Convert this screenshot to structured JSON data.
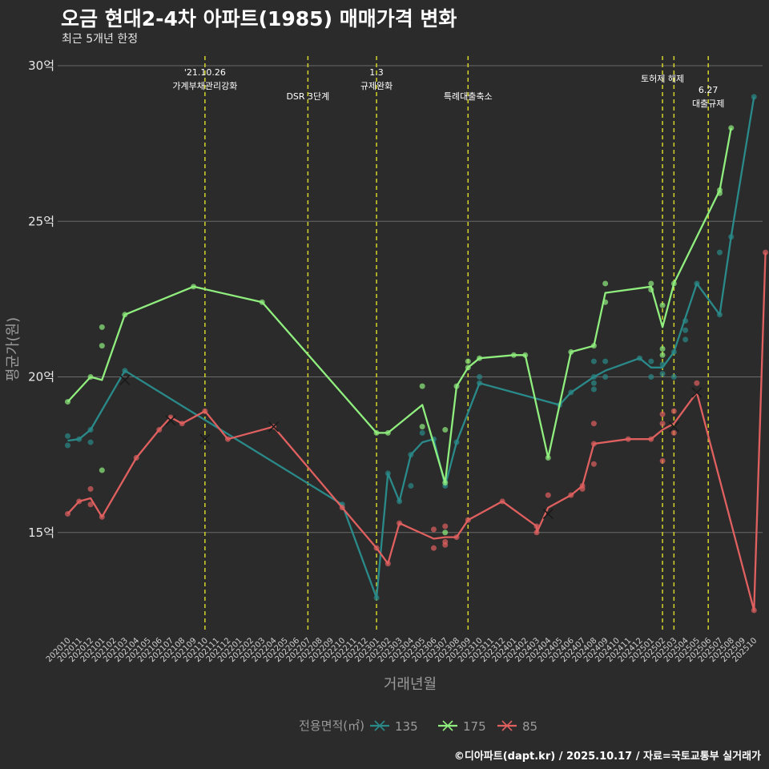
{
  "title": "오금 현대2-4차 아파트(1985) 매매가격 변화",
  "subtitle": "최근 5개년 한정",
  "caption": "©디아파트(dapt.kr) / 2025.10.17 / 자료=국토교통부 실거래가",
  "chart_data": {
    "type": "line",
    "xlabel": "거래년월",
    "ylabel": "평균가(원)",
    "y_ticks": [
      15,
      20,
      25,
      30
    ],
    "y_tick_labels": [
      "15억",
      "20억",
      "25억",
      "30억"
    ],
    "ylim": [
      11.8,
      30.9
    ],
    "grid": true,
    "categories": [
      "202010",
      "202011",
      "202012",
      "202101",
      "202102",
      "202103",
      "202104",
      "202105",
      "202106",
      "202107",
      "202108",
      "202109",
      "202110",
      "202111",
      "202112",
      "202201",
      "202202",
      "202203",
      "202204",
      "202205",
      "202206",
      "202207",
      "202208",
      "202209",
      "202210",
      "202211",
      "202212",
      "202301",
      "202302",
      "202303",
      "202304",
      "202305",
      "202306",
      "202307",
      "202308",
      "202309",
      "202310",
      "202311",
      "202312",
      "202401",
      "202402",
      "202403",
      "202404",
      "202405",
      "202406",
      "202407",
      "202408",
      "202409",
      "202410",
      "202411",
      "202412",
      "202501",
      "202502",
      "202503",
      "202504",
      "202505",
      "202506",
      "202507",
      "202508",
      "202509",
      "202510"
    ],
    "legend_title": "전용면적(㎡)",
    "legend_position": "bottom",
    "series": [
      {
        "name": "135",
        "color": "#2a8a8a",
        "line": [
          [
            0,
            17.95
          ],
          [
            1,
            18
          ],
          [
            2,
            18.3
          ],
          [
            5,
            20.2
          ],
          [
            24,
            15.9
          ],
          [
            27,
            12.9
          ],
          [
            28,
            16.9
          ],
          [
            29,
            16.0
          ],
          [
            30,
            17.5
          ],
          [
            31,
            17.9
          ],
          [
            32,
            18.0
          ],
          [
            33,
            16.5
          ],
          [
            34,
            17.9
          ],
          [
            36,
            19.8
          ],
          [
            43,
            19.1
          ],
          [
            44,
            19.5
          ],
          [
            46,
            20.0
          ],
          [
            47,
            20.2
          ],
          [
            50,
            20.6
          ],
          [
            51,
            20.3
          ],
          [
            52,
            20.3
          ],
          [
            53,
            20.8
          ],
          [
            55,
            23.0
          ],
          [
            57,
            22.0
          ],
          [
            58,
            24.5
          ],
          [
            60,
            29.0
          ]
        ],
        "points": [
          [
            0,
            17.8
          ],
          [
            0,
            18.1
          ],
          [
            1,
            18.0
          ],
          [
            2,
            17.9
          ],
          [
            2,
            18.3
          ],
          [
            5,
            20.2
          ],
          [
            24,
            15.9
          ],
          [
            27,
            12.9
          ],
          [
            28,
            16.9
          ],
          [
            29,
            16.0
          ],
          [
            30,
            17.5
          ],
          [
            30,
            16.5
          ],
          [
            31,
            18.2
          ],
          [
            32,
            18.0
          ],
          [
            33,
            16.5
          ],
          [
            34,
            17.9
          ],
          [
            36,
            20.0
          ],
          [
            36,
            19.8
          ],
          [
            43,
            19.1
          ],
          [
            44,
            19.5
          ],
          [
            46,
            20.5
          ],
          [
            46,
            19.6
          ],
          [
            46,
            19.8
          ],
          [
            46,
            20.0
          ],
          [
            47,
            20.0
          ],
          [
            47,
            20.5
          ],
          [
            50,
            20.6
          ],
          [
            51,
            20.0
          ],
          [
            51,
            20.5
          ],
          [
            52,
            20.1
          ],
          [
            52,
            20.4
          ],
          [
            53,
            20.0
          ],
          [
            53,
            20.8
          ],
          [
            54,
            21.2
          ],
          [
            54,
            21.5
          ],
          [
            54,
            21.8
          ],
          [
            55,
            23.0
          ],
          [
            57,
            24.0
          ],
          [
            57,
            22.0
          ],
          [
            58,
            24.5
          ],
          [
            60,
            29.0
          ]
        ],
        "cancelled": [
          [
            5,
            19.9
          ]
        ]
      },
      {
        "name": "175",
        "color": "#90ee7e",
        "line": [
          [
            0,
            19.2
          ],
          [
            2,
            20.0
          ],
          [
            3,
            19.9
          ],
          [
            5,
            22.0
          ],
          [
            11,
            22.9
          ],
          [
            17,
            22.4
          ],
          [
            27,
            18.2
          ],
          [
            28,
            18.2
          ],
          [
            31,
            19.1
          ],
          [
            33,
            16.6
          ],
          [
            34,
            19.7
          ],
          [
            35,
            20.3
          ],
          [
            36,
            20.6
          ],
          [
            39,
            20.7
          ],
          [
            40,
            20.7
          ],
          [
            42,
            17.4
          ],
          [
            44,
            20.8
          ],
          [
            46,
            21.0
          ],
          [
            47,
            22.7
          ],
          [
            51,
            22.9
          ],
          [
            52,
            21.6
          ],
          [
            53,
            23.0
          ],
          [
            57,
            26.0
          ],
          [
            58,
            28.0
          ]
        ],
        "points": [
          [
            0,
            19.2
          ],
          [
            2,
            20.0
          ],
          [
            3,
            21.6
          ],
          [
            3,
            21.0
          ],
          [
            3,
            17.0
          ],
          [
            5,
            22.0
          ],
          [
            11,
            22.9
          ],
          [
            17,
            22.4
          ],
          [
            27,
            18.2
          ],
          [
            28,
            18.2
          ],
          [
            31,
            19.7
          ],
          [
            31,
            18.4
          ],
          [
            33,
            18.3
          ],
          [
            33,
            16.6
          ],
          [
            33,
            15.0
          ],
          [
            34,
            19.7
          ],
          [
            35,
            20.5
          ],
          [
            35,
            20.3
          ],
          [
            36,
            20.6
          ],
          [
            39,
            20.7
          ],
          [
            40,
            20.7
          ],
          [
            42,
            17.4
          ],
          [
            44,
            20.8
          ],
          [
            46,
            21.0
          ],
          [
            47,
            23.0
          ],
          [
            47,
            22.4
          ],
          [
            51,
            23.0
          ],
          [
            51,
            22.8
          ],
          [
            52,
            22.3
          ],
          [
            52,
            20.9
          ],
          [
            52,
            20.7
          ],
          [
            53,
            23.0
          ],
          [
            57,
            26.0
          ],
          [
            57,
            25.9
          ],
          [
            58,
            28.0
          ]
        ],
        "cancelled": []
      },
      {
        "name": "85",
        "color": "#e06060",
        "line": [
          [
            0,
            15.6
          ],
          [
            1,
            16.0
          ],
          [
            2,
            16.1
          ],
          [
            3,
            15.5
          ],
          [
            6,
            17.4
          ],
          [
            8,
            18.3
          ],
          [
            9,
            18.7
          ],
          [
            10,
            18.5
          ],
          [
            12,
            18.9
          ],
          [
            14,
            18.0
          ],
          [
            18,
            18.4
          ],
          [
            24,
            15.8
          ],
          [
            27,
            14.5
          ],
          [
            28,
            14.0
          ],
          [
            29,
            15.3
          ],
          [
            32,
            14.8
          ],
          [
            33,
            14.85
          ],
          [
            34,
            14.85
          ],
          [
            35,
            15.4
          ],
          [
            38,
            16.0
          ],
          [
            41,
            15.2
          ],
          [
            41,
            15.0
          ],
          [
            42,
            15.8
          ],
          [
            44,
            16.2
          ],
          [
            45,
            16.5
          ],
          [
            46,
            17.85
          ],
          [
            49,
            18.0
          ],
          [
            51,
            18.0
          ],
          [
            52,
            18.3
          ],
          [
            53,
            18.5
          ],
          [
            55,
            19.5
          ],
          [
            60,
            12.5
          ],
          [
            61,
            24.0
          ]
        ],
        "points": [
          [
            0,
            15.6
          ],
          [
            1,
            16.0
          ],
          [
            2,
            16.4
          ],
          [
            2,
            15.9
          ],
          [
            3,
            15.5
          ],
          [
            6,
            17.4
          ],
          [
            8,
            18.3
          ],
          [
            9,
            18.7
          ],
          [
            10,
            18.5
          ],
          [
            12,
            18.9
          ],
          [
            14,
            18.0
          ],
          [
            18,
            18.4
          ],
          [
            24,
            15.8
          ],
          [
            27,
            14.5
          ],
          [
            28,
            14.0
          ],
          [
            29,
            15.3
          ],
          [
            32,
            15.1
          ],
          [
            32,
            14.5
          ],
          [
            33,
            15.2
          ],
          [
            33,
            14.7
          ],
          [
            33,
            14.6
          ],
          [
            34,
            14.85
          ],
          [
            35,
            15.4
          ],
          [
            38,
            16.0
          ],
          [
            41,
            15.2
          ],
          [
            41,
            15.0
          ],
          [
            42,
            16.2
          ],
          [
            44,
            16.2
          ],
          [
            45,
            16.5
          ],
          [
            45,
            16.4
          ],
          [
            46,
            18.5
          ],
          [
            46,
            17.2
          ],
          [
            46,
            17.85
          ],
          [
            49,
            18.0
          ],
          [
            51,
            18.0
          ],
          [
            52,
            18.8
          ],
          [
            52,
            18.5
          ],
          [
            52,
            17.3
          ],
          [
            53,
            18.9
          ],
          [
            53,
            18.2
          ],
          [
            55,
            19.8
          ],
          [
            60,
            12.5
          ],
          [
            61,
            24.0
          ]
        ],
        "cancelled": [
          [
            9,
            18.6
          ],
          [
            12,
            18.0
          ],
          [
            18,
            18.4
          ],
          [
            42,
            15.6
          ],
          [
            53,
            18.4
          ],
          [
            55,
            19.5
          ]
        ]
      }
    ],
    "annotations": [
      {
        "x": 12,
        "lines": [
          "'21.10.26",
          "가계부채관리강화"
        ],
        "level": 0
      },
      {
        "x": 21,
        "lines": [
          "DSR 3단계"
        ],
        "level": 1
      },
      {
        "x": 27,
        "lines": [
          "1.3",
          "규제완화"
        ],
        "level": 0
      },
      {
        "x": 35,
        "lines": [
          "특례대출축소"
        ],
        "level": 1
      },
      {
        "x": 52,
        "lines": [
          "토허제 해제"
        ],
        "level": 2
      },
      {
        "x": 53,
        "lines": [],
        "level": 2
      },
      {
        "x": 56,
        "lines": [
          "6.27",
          "대출규제"
        ],
        "level": 3
      }
    ]
  }
}
